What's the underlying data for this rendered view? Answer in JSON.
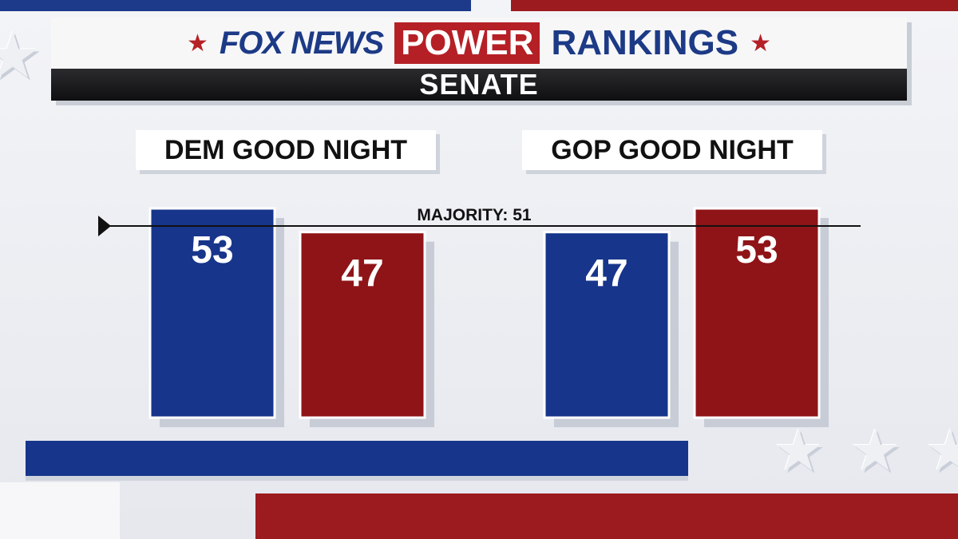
{
  "header": {
    "brand": "FOX NEWS",
    "title_highlight": "POWER",
    "title_rest": "RANKINGS",
    "subtitle": "SENATE"
  },
  "colors": {
    "dem": "#17358b",
    "gop": "#8f1418",
    "accent_red": "#b52026",
    "brand_blue": "#1c3a86"
  },
  "icons": {
    "header_star": "star-icon",
    "majority_marker": "triangle-pointer-icon"
  },
  "chart_data": {
    "type": "bar",
    "title": "SENATE",
    "majority_line": {
      "label": "MAJORITY: 51",
      "value": 51
    },
    "ylim": [
      0,
      53
    ],
    "groups": [
      {
        "label": "DEM GOOD NIGHT",
        "bars": [
          {
            "party": "DEM",
            "value": 53,
            "color": "#17358b"
          },
          {
            "party": "GOP",
            "value": 47,
            "color": "#8f1418"
          }
        ]
      },
      {
        "label": "GOP GOOD NIGHT",
        "bars": [
          {
            "party": "DEM",
            "value": 47,
            "color": "#17358b"
          },
          {
            "party": "GOP",
            "value": 53,
            "color": "#8f1418"
          }
        ]
      }
    ]
  }
}
